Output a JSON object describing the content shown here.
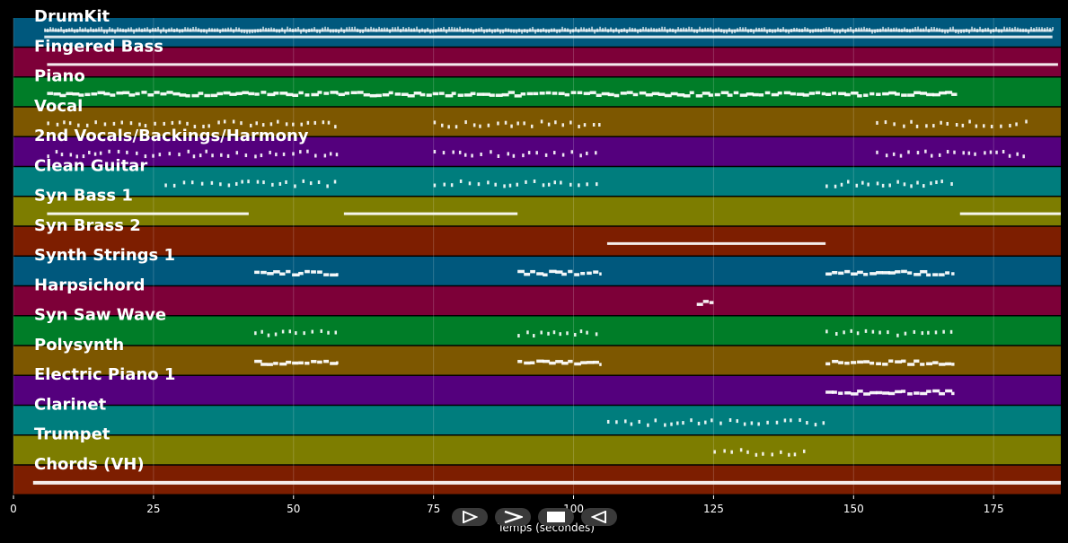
{
  "chart_data": {
    "type": "piano-roll",
    "xlabel": "Temps (secondes)",
    "xlim": [
      0,
      187
    ],
    "xticks": [
      0,
      25,
      50,
      75,
      100,
      125,
      150,
      175
    ],
    "grid": true,
    "tracks": [
      {
        "name": "DrumKit",
        "color": "#00587d",
        "segments": [
          [
            5.5,
            185.5
          ]
        ],
        "style": "dense"
      },
      {
        "name": "Fingered Bass",
        "color": "#7d0038",
        "segments": [
          [
            6,
            186.5
          ]
        ],
        "style": "line"
      },
      {
        "name": "Piano",
        "color": "#007d28",
        "segments": [
          [
            6,
            58
          ],
          [
            58,
            105
          ],
          [
            105,
            145
          ],
          [
            145,
            168.5
          ]
        ],
        "style": "blocks"
      },
      {
        "name": "Vocal",
        "color": "#7d5700",
        "segments": [
          [
            6,
            58
          ],
          [
            75,
            105
          ],
          [
            154,
            181
          ]
        ],
        "style": "sparse"
      },
      {
        "name": "2nd Vocals/Backings/Harmony",
        "color": "#54007d",
        "segments": [
          [
            6,
            58
          ],
          [
            75,
            105
          ],
          [
            154,
            181
          ]
        ],
        "style": "sparse"
      },
      {
        "name": "Clean Guitar",
        "color": "#007d7d",
        "segments": [
          [
            27,
            58
          ],
          [
            75,
            105
          ],
          [
            145,
            168
          ]
        ],
        "style": "sparse"
      },
      {
        "name": "Syn Bass 1",
        "color": "#7d7d00",
        "segments": [
          [
            6,
            42
          ],
          [
            59,
            90
          ],
          [
            169,
            187
          ]
        ],
        "style": "line"
      },
      {
        "name": "Syn Brass 2",
        "color": "#7d1e00",
        "segments": [
          [
            106,
            145
          ]
        ],
        "style": "line"
      },
      {
        "name": "Synth Strings 1",
        "color": "#00587d",
        "segments": [
          [
            43,
            58
          ],
          [
            90,
            105
          ],
          [
            145,
            168
          ]
        ],
        "style": "blocks"
      },
      {
        "name": "Harpsichord",
        "color": "#7d0038",
        "segments": [
          [
            122,
            125
          ]
        ],
        "style": "blocks"
      },
      {
        "name": "Syn Saw Wave",
        "color": "#007d28",
        "segments": [
          [
            43,
            58
          ],
          [
            90,
            105
          ],
          [
            145,
            168
          ]
        ],
        "style": "sparse"
      },
      {
        "name": "Polysynth",
        "color": "#7d5700",
        "segments": [
          [
            43,
            58
          ],
          [
            90,
            105
          ],
          [
            145,
            168
          ]
        ],
        "style": "blocks"
      },
      {
        "name": "Electric Piano 1",
        "color": "#54007d",
        "segments": [
          [
            145,
            168
          ]
        ],
        "style": "blocks"
      },
      {
        "name": "Clarinet",
        "color": "#007d7d",
        "segments": [
          [
            106,
            145
          ]
        ],
        "style": "sparse"
      },
      {
        "name": "Trumpet",
        "color": "#7d7d00",
        "segments": [
          [
            125,
            141
          ]
        ],
        "style": "sparse"
      },
      {
        "name": "Chords (VH)",
        "color": "#7d1e00",
        "segments": [
          [
            3.5,
            187
          ]
        ],
        "style": "line"
      }
    ]
  },
  "controls": [
    {
      "name": "play-button",
      "icon": "play-outline-icon"
    },
    {
      "name": "forward-button",
      "icon": "chevron-right-icon"
    },
    {
      "name": "stop-button",
      "icon": "stop-icon"
    },
    {
      "name": "back-button",
      "icon": "play-reverse-icon"
    }
  ]
}
